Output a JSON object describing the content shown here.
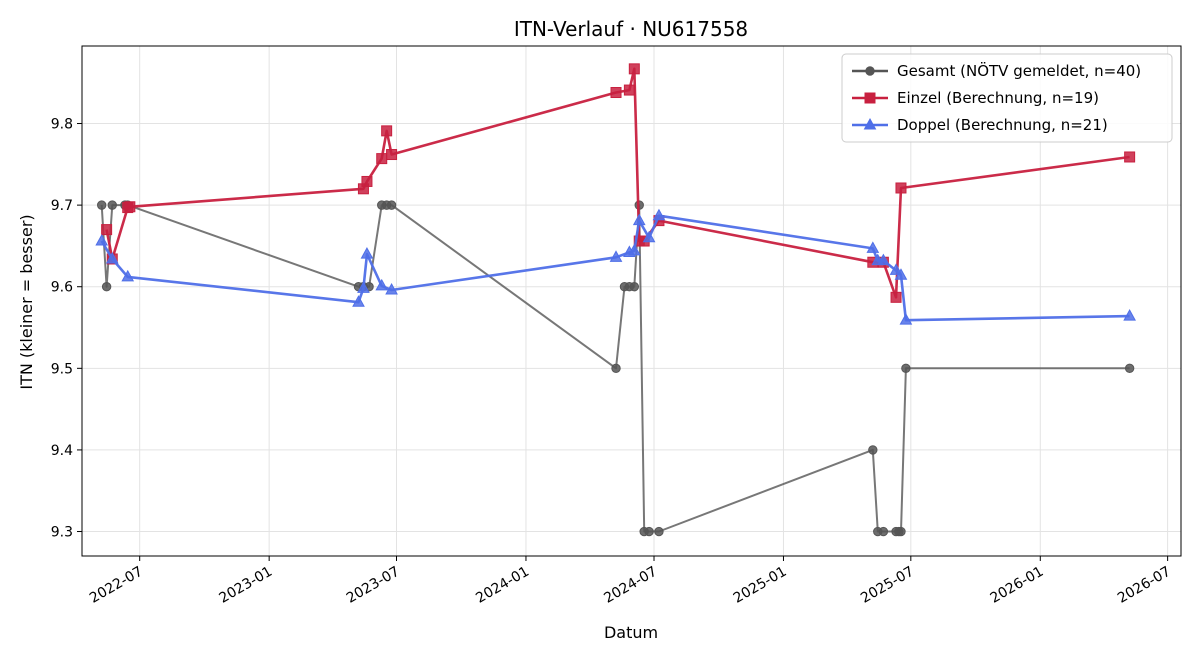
{
  "chart_data": {
    "type": "line",
    "title": "ITN-Verlauf · NU617558",
    "xlabel": "Datum",
    "ylabel": "ITN  (kleiner = besser)",
    "xlim": [
      "2022-04-10",
      "2026-07-20"
    ],
    "ylim": [
      9.27,
      9.895
    ],
    "x_ticks": [
      "2022-07-01",
      "2023-01-01",
      "2023-07-01",
      "2024-01-01",
      "2024-07-01",
      "2025-01-01",
      "2025-07-01",
      "2026-01-01",
      "2026-07-01"
    ],
    "x_tick_labels": [
      "2022-07",
      "2023-01",
      "2023-07",
      "2024-01",
      "2024-07",
      "2025-01",
      "2025-07",
      "2026-01",
      "2026-07"
    ],
    "y_ticks": [
      9.3,
      9.4,
      9.5,
      9.6,
      9.7,
      9.8
    ],
    "y_tick_labels": [
      "9.3",
      "9.4",
      "9.5",
      "9.6",
      "9.7",
      "9.8"
    ],
    "grid": true,
    "legend_position": "top-right",
    "series": [
      {
        "name": "Gesamt (NÖTV gemeldet, n=40)",
        "color": "#555555",
        "marker": "circle",
        "points": [
          [
            "2022-05-08",
            9.7
          ],
          [
            "2022-05-15",
            9.6
          ],
          [
            "2022-05-23",
            9.7
          ],
          [
            "2022-06-10",
            9.7
          ],
          [
            "2022-06-14",
            9.7
          ],
          [
            "2023-05-08",
            9.6
          ],
          [
            "2023-05-15",
            9.6
          ],
          [
            "2023-05-23",
            9.6
          ],
          [
            "2023-06-10",
            9.7
          ],
          [
            "2023-06-17",
            9.7
          ],
          [
            "2023-06-24",
            9.7
          ],
          [
            "2024-05-08",
            9.5
          ],
          [
            "2024-05-20",
            9.6
          ],
          [
            "2024-05-27",
            9.6
          ],
          [
            "2024-06-03",
            9.6
          ],
          [
            "2024-06-10",
            9.7
          ],
          [
            "2024-06-17",
            9.3
          ],
          [
            "2024-06-24",
            9.3
          ],
          [
            "2024-07-08",
            9.3
          ],
          [
            "2025-05-08",
            9.4
          ],
          [
            "2025-05-15",
            9.3
          ],
          [
            "2025-05-23",
            9.3
          ],
          [
            "2025-06-10",
            9.3
          ],
          [
            "2025-06-14",
            9.3
          ],
          [
            "2025-06-17",
            9.3
          ],
          [
            "2025-06-24",
            9.5
          ],
          [
            "2026-05-08",
            9.5
          ]
        ]
      },
      {
        "name": "Einzel (Berechnung, n=19)",
        "color": "#c8203f",
        "marker": "square",
        "points": [
          [
            "2022-05-15",
            9.67
          ],
          [
            "2022-05-23",
            9.634
          ],
          [
            "2022-06-14",
            9.697
          ],
          [
            "2022-06-17",
            9.698
          ],
          [
            "2023-05-15",
            9.72
          ],
          [
            "2023-05-20",
            9.729
          ],
          [
            "2023-06-10",
            9.757
          ],
          [
            "2023-06-17",
            9.791
          ],
          [
            "2023-06-24",
            9.762
          ],
          [
            "2024-05-08",
            9.838
          ],
          [
            "2024-05-27",
            9.841
          ],
          [
            "2024-06-03",
            9.867
          ],
          [
            "2024-06-10",
            9.656
          ],
          [
            "2024-06-17",
            9.656
          ],
          [
            "2024-07-08",
            9.681
          ],
          [
            "2025-05-08",
            9.63
          ],
          [
            "2025-05-23",
            9.63
          ],
          [
            "2025-06-10",
            9.587
          ],
          [
            "2025-06-17",
            9.721
          ],
          [
            "2026-05-08",
            9.759
          ]
        ]
      },
      {
        "name": "Doppel (Berechnung, n=21)",
        "color": "#4f6fe8",
        "marker": "triangle",
        "points": [
          [
            "2022-05-08",
            9.656
          ],
          [
            "2022-05-23",
            9.634
          ],
          [
            "2022-06-14",
            9.612
          ],
          [
            "2023-05-08",
            9.581
          ],
          [
            "2023-05-15",
            9.598
          ],
          [
            "2023-05-20",
            9.64
          ],
          [
            "2023-06-10",
            9.601
          ],
          [
            "2023-06-24",
            9.596
          ],
          [
            "2024-05-08",
            9.636
          ],
          [
            "2024-05-27",
            9.642
          ],
          [
            "2024-06-03",
            9.644
          ],
          [
            "2024-06-10",
            9.681
          ],
          [
            "2024-06-24",
            9.66
          ],
          [
            "2024-07-08",
            9.687
          ],
          [
            "2025-05-08",
            9.647
          ],
          [
            "2025-05-15",
            9.632
          ],
          [
            "2025-05-23",
            9.632
          ],
          [
            "2025-06-10",
            9.62
          ],
          [
            "2025-06-17",
            9.614
          ],
          [
            "2025-06-24",
            9.559
          ],
          [
            "2026-05-08",
            9.564
          ]
        ]
      }
    ]
  }
}
